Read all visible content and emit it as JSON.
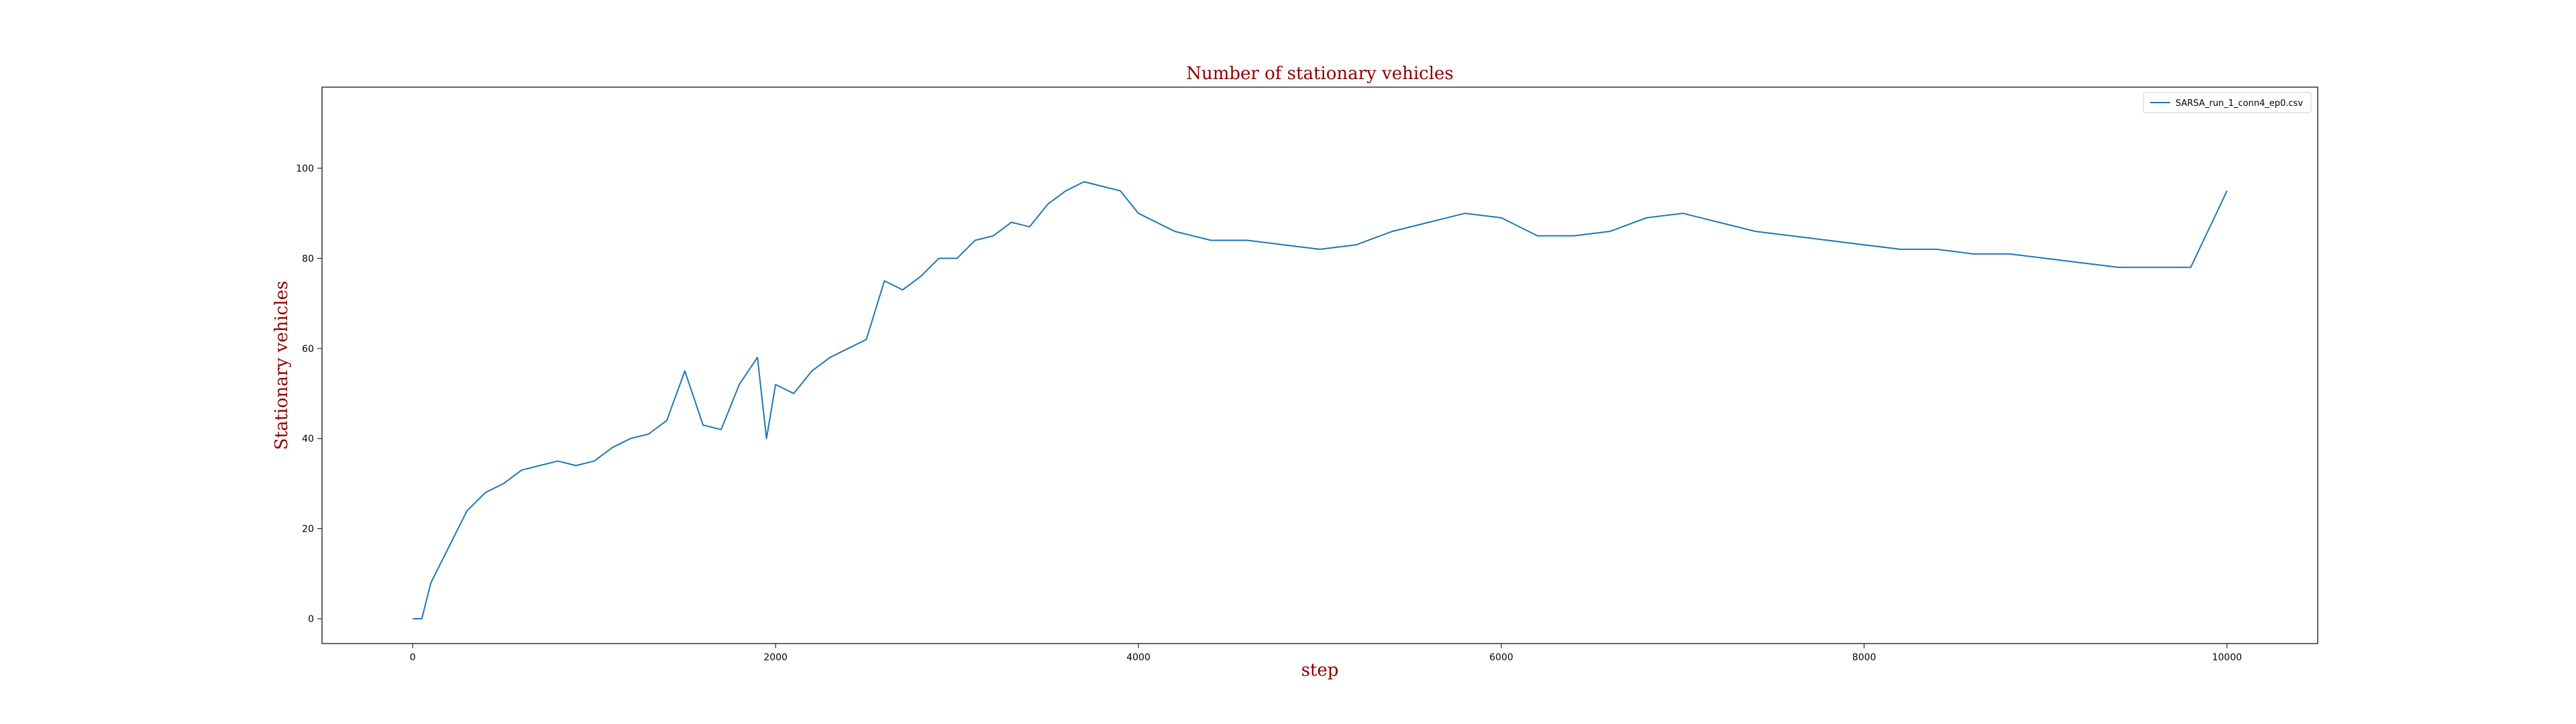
{
  "colors": {
    "series": "#1f77b4",
    "title": "#8b0000",
    "axis": "#000000",
    "background": "#ffffff"
  },
  "chart_data": {
    "type": "line",
    "title": "Number of stationary vehicles",
    "xlabel": "step",
    "ylabel": "Stationary vehicles",
    "xlim": [
      -500,
      10500
    ],
    "ylim": [
      -5.5,
      118
    ],
    "xticks": [
      0,
      2000,
      4000,
      6000,
      8000,
      10000
    ],
    "yticks": [
      0,
      20,
      40,
      60,
      80,
      100
    ],
    "grid": false,
    "legend_position": "top-right",
    "series": [
      {
        "name": "SARSA_run_1_conn4_ep0.csv",
        "color": "#1f77b4",
        "x": [
          0,
          50,
          100,
          150,
          200,
          250,
          300,
          400,
          500,
          600,
          700,
          800,
          900,
          1000,
          1100,
          1200,
          1300,
          1400,
          1500,
          1600,
          1700,
          1800,
          1900,
          1950,
          2000,
          2100,
          2200,
          2300,
          2400,
          2500,
          2600,
          2700,
          2800,
          2900,
          3000,
          3100,
          3200,
          3300,
          3400,
          3500,
          3600,
          3700,
          3800,
          3900,
          4000,
          4200,
          4400,
          4600,
          4800,
          5000,
          5200,
          5400,
          5600,
          5800,
          6000,
          6200,
          6400,
          6600,
          6800,
          7000,
          7200,
          7400,
          7600,
          7800,
          8000,
          8200,
          8400,
          8600,
          8800,
          9000,
          9200,
          9400,
          9600,
          9800,
          10000
        ],
        "values": [
          0,
          0,
          8,
          12,
          16,
          20,
          24,
          28,
          30,
          33,
          34,
          35,
          34,
          35,
          38,
          40,
          41,
          44,
          55,
          43,
          42,
          52,
          58,
          40,
          52,
          50,
          55,
          58,
          60,
          62,
          75,
          73,
          76,
          80,
          80,
          84,
          85,
          88,
          87,
          92,
          95,
          97,
          96,
          95,
          90,
          86,
          84,
          84,
          83,
          82,
          83,
          86,
          88,
          90,
          89,
          85,
          85,
          86,
          89,
          90,
          88,
          86,
          85,
          84,
          83,
          82,
          82,
          81,
          81,
          80,
          79,
          78,
          78,
          78,
          95
        ]
      }
    ]
  }
}
